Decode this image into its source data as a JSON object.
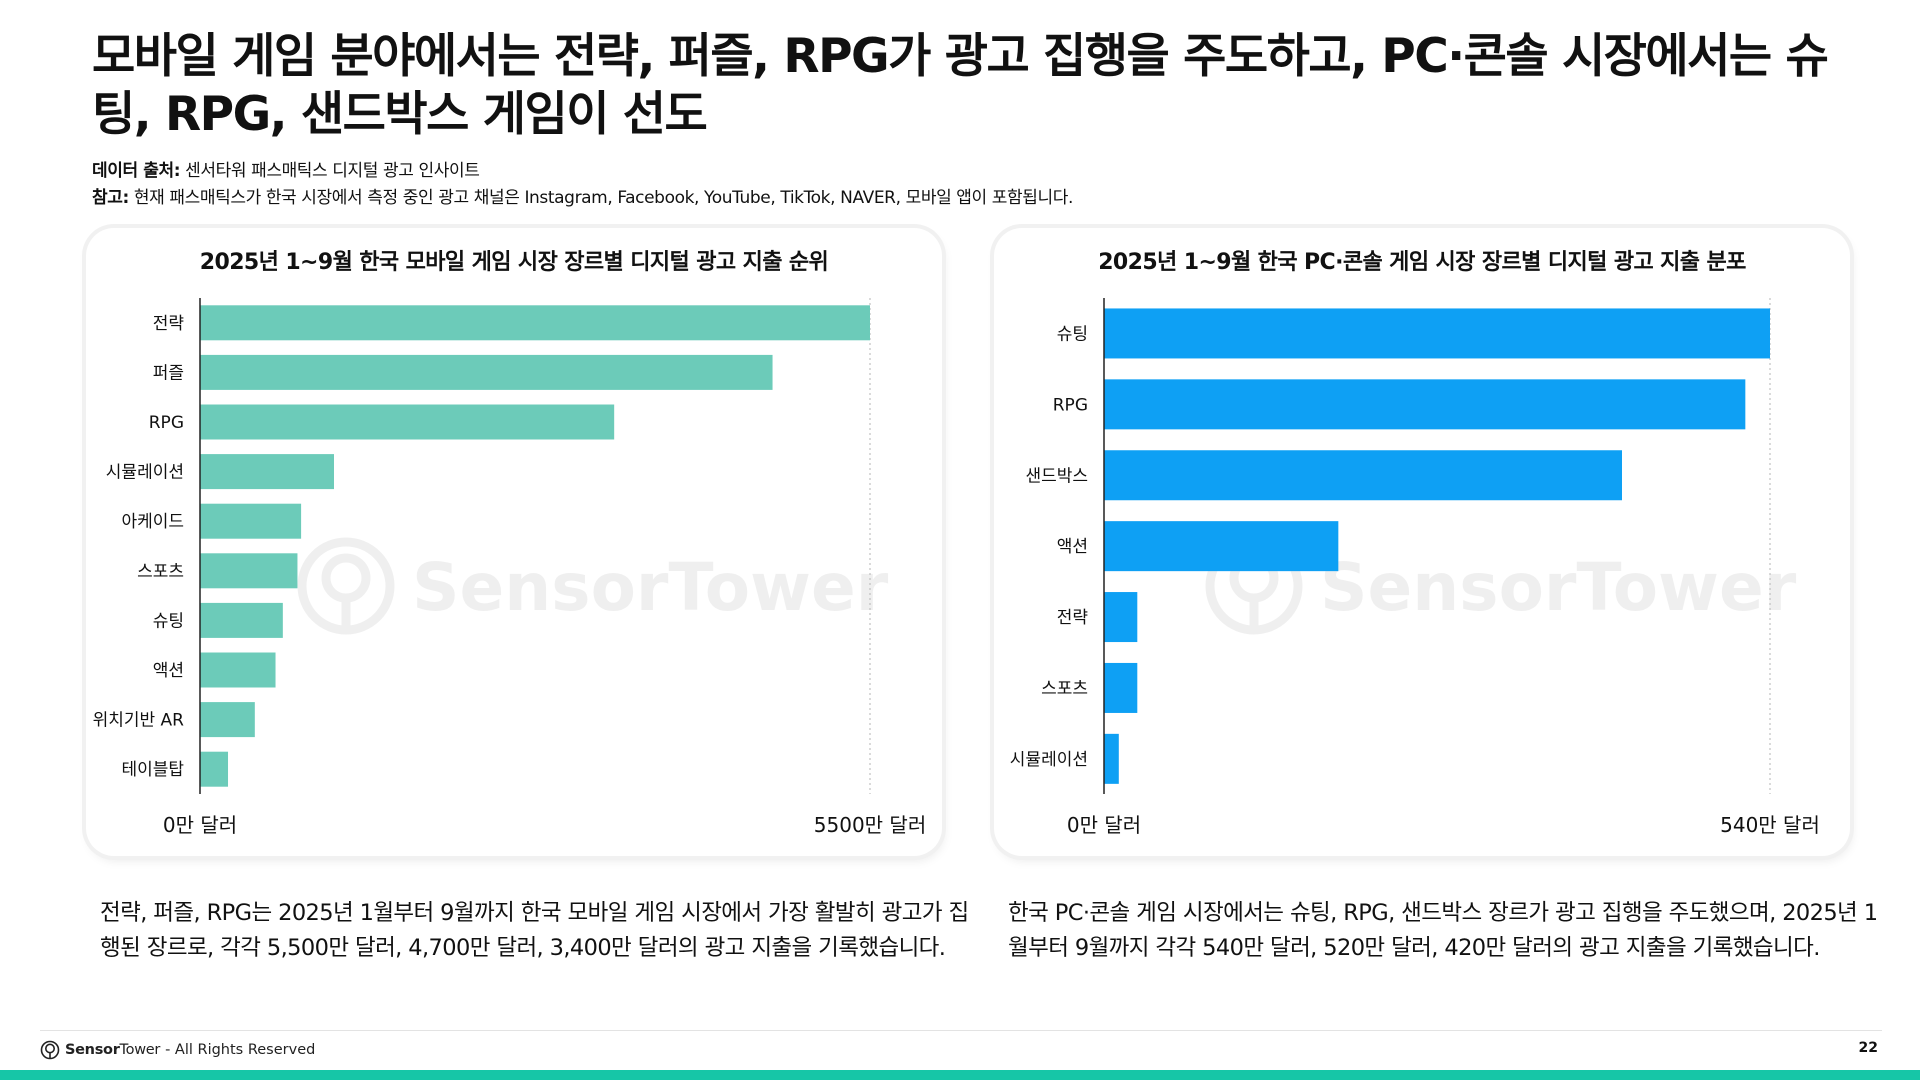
{
  "headline": "모바일 게임 분야에서는 전략, 퍼즐, RPG가 광고 집행을 주도하고, PC·콘솔 시장에서는 슈팅, RPG, 샌드박스 게임이 선도",
  "source": {
    "data_label": "데이터 출처:",
    "data_value": " 센서타워 패스매틱스 디지털 광고 인사이트",
    "note_label": "참고:",
    "note_value": " 현재 패스매틱스가 한국 시장에서 측정 중인 광고 채널은 Instagram, Facebook, YouTube, TikTok, NAVER, 모바일 앱이 포함됩니다."
  },
  "watermark": "SensorTower",
  "chart_data": [
    {
      "type": "bar",
      "orientation": "horizontal",
      "title": "2025년 1~9월 한국 모바일 게임 시장 장르별 디지털 광고 지출 순위",
      "categories": [
        "전략",
        "퍼즐",
        "RPG",
        "시뮬레이션",
        "아케이드",
        "스포츠",
        "슈팅",
        "액션",
        "위치기반 AR",
        "테이블탑"
      ],
      "values": [
        5500,
        4700,
        3400,
        1100,
        830,
        800,
        680,
        620,
        450,
        230
      ],
      "unit": "만 달러",
      "xlim": [
        0,
        5500
      ],
      "x_tick_labels": [
        "0만 달러",
        "5500만 달러"
      ],
      "color": "#6ccbb9"
    },
    {
      "type": "bar",
      "orientation": "horizontal",
      "title": "2025년 1~9월 한국 PC·콘솔 게임 시장 장르별 디지털 광고 지출 분포",
      "categories": [
        "슈팅",
        "RPG",
        "샌드박스",
        "액션",
        "전략",
        "스포츠",
        "시뮬레이션"
      ],
      "values": [
        540,
        520,
        420,
        190,
        27,
        27,
        12
      ],
      "unit": "만 달러",
      "xlim": [
        0,
        540
      ],
      "x_tick_labels": [
        "0만 달러",
        "540만 달러"
      ],
      "color": "#0ea0f4"
    }
  ],
  "captions": {
    "left": "전략, 퍼즐, RPG는 2025년 1월부터 9월까지 한국 모바일 게임 시장에서 가장 활발히 광고가 집행된 장르로, 각각 5,500만 달러, 4,700만 달러, 3,400만 달러의 광고 지출을 기록했습니다.",
    "right": "한국 PC·콘솔 게임 시장에서는 슈팅, RPG, 샌드박스 장르가 광고 집행을 주도했으며, 2025년 1월부터 9월까지 각각 540만 달러, 520만 달러, 420만 달러의 광고 지출을 기록했습니다."
  },
  "footer": {
    "brand_sensor": "Sensor",
    "brand_tower": "Tower",
    "rights": "- All Rights Reserved",
    "page_number": "22"
  },
  "colors": {
    "accent_bar": "#16c6a7",
    "mobile_bars": "#6ccbb9",
    "pc_bars": "#0ea0f4"
  }
}
